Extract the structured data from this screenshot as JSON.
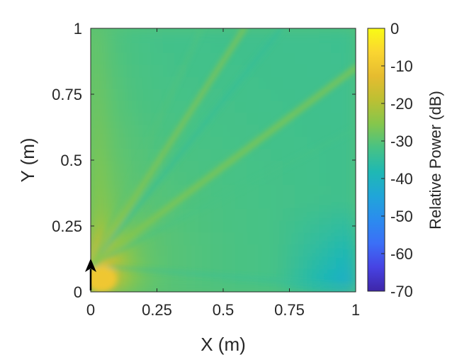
{
  "chart_data": {
    "type": "heatmap",
    "title": "",
    "xlabel": "X (m)",
    "ylabel": "Y (m)",
    "xlim": [
      0,
      1
    ],
    "ylim": [
      0,
      1
    ],
    "x_ticks": [
      "0",
      "0.25",
      "0.5",
      "0.75",
      "1"
    ],
    "y_ticks": [
      "0",
      "0.25",
      "0.5",
      "0.75",
      "1"
    ],
    "colorbar": {
      "label": "Relative Power (dB)",
      "range": [
        -70,
        0
      ],
      "ticks": [
        "0",
        "-10",
        "-20",
        "-30",
        "-40",
        "-50",
        "-60",
        "-70"
      ],
      "colormap": [
        "#3e26a8",
        "#4743e3",
        "#3b6ff7",
        "#2b8cee",
        "#20a6d8",
        "#1fb8b3",
        "#47c285",
        "#85c64c",
        "#bcc033",
        "#e6bc2f",
        "#fad531",
        "#f9fb15"
      ]
    },
    "source_marker": {
      "x": 0,
      "y": 0.1,
      "direction": "up"
    },
    "field_summary": {
      "source_region_db": -13,
      "left_edge_db": -18,
      "diagonal_beam_db": -26,
      "null_lines_db": -35,
      "far_corner_db": -36
    }
  }
}
